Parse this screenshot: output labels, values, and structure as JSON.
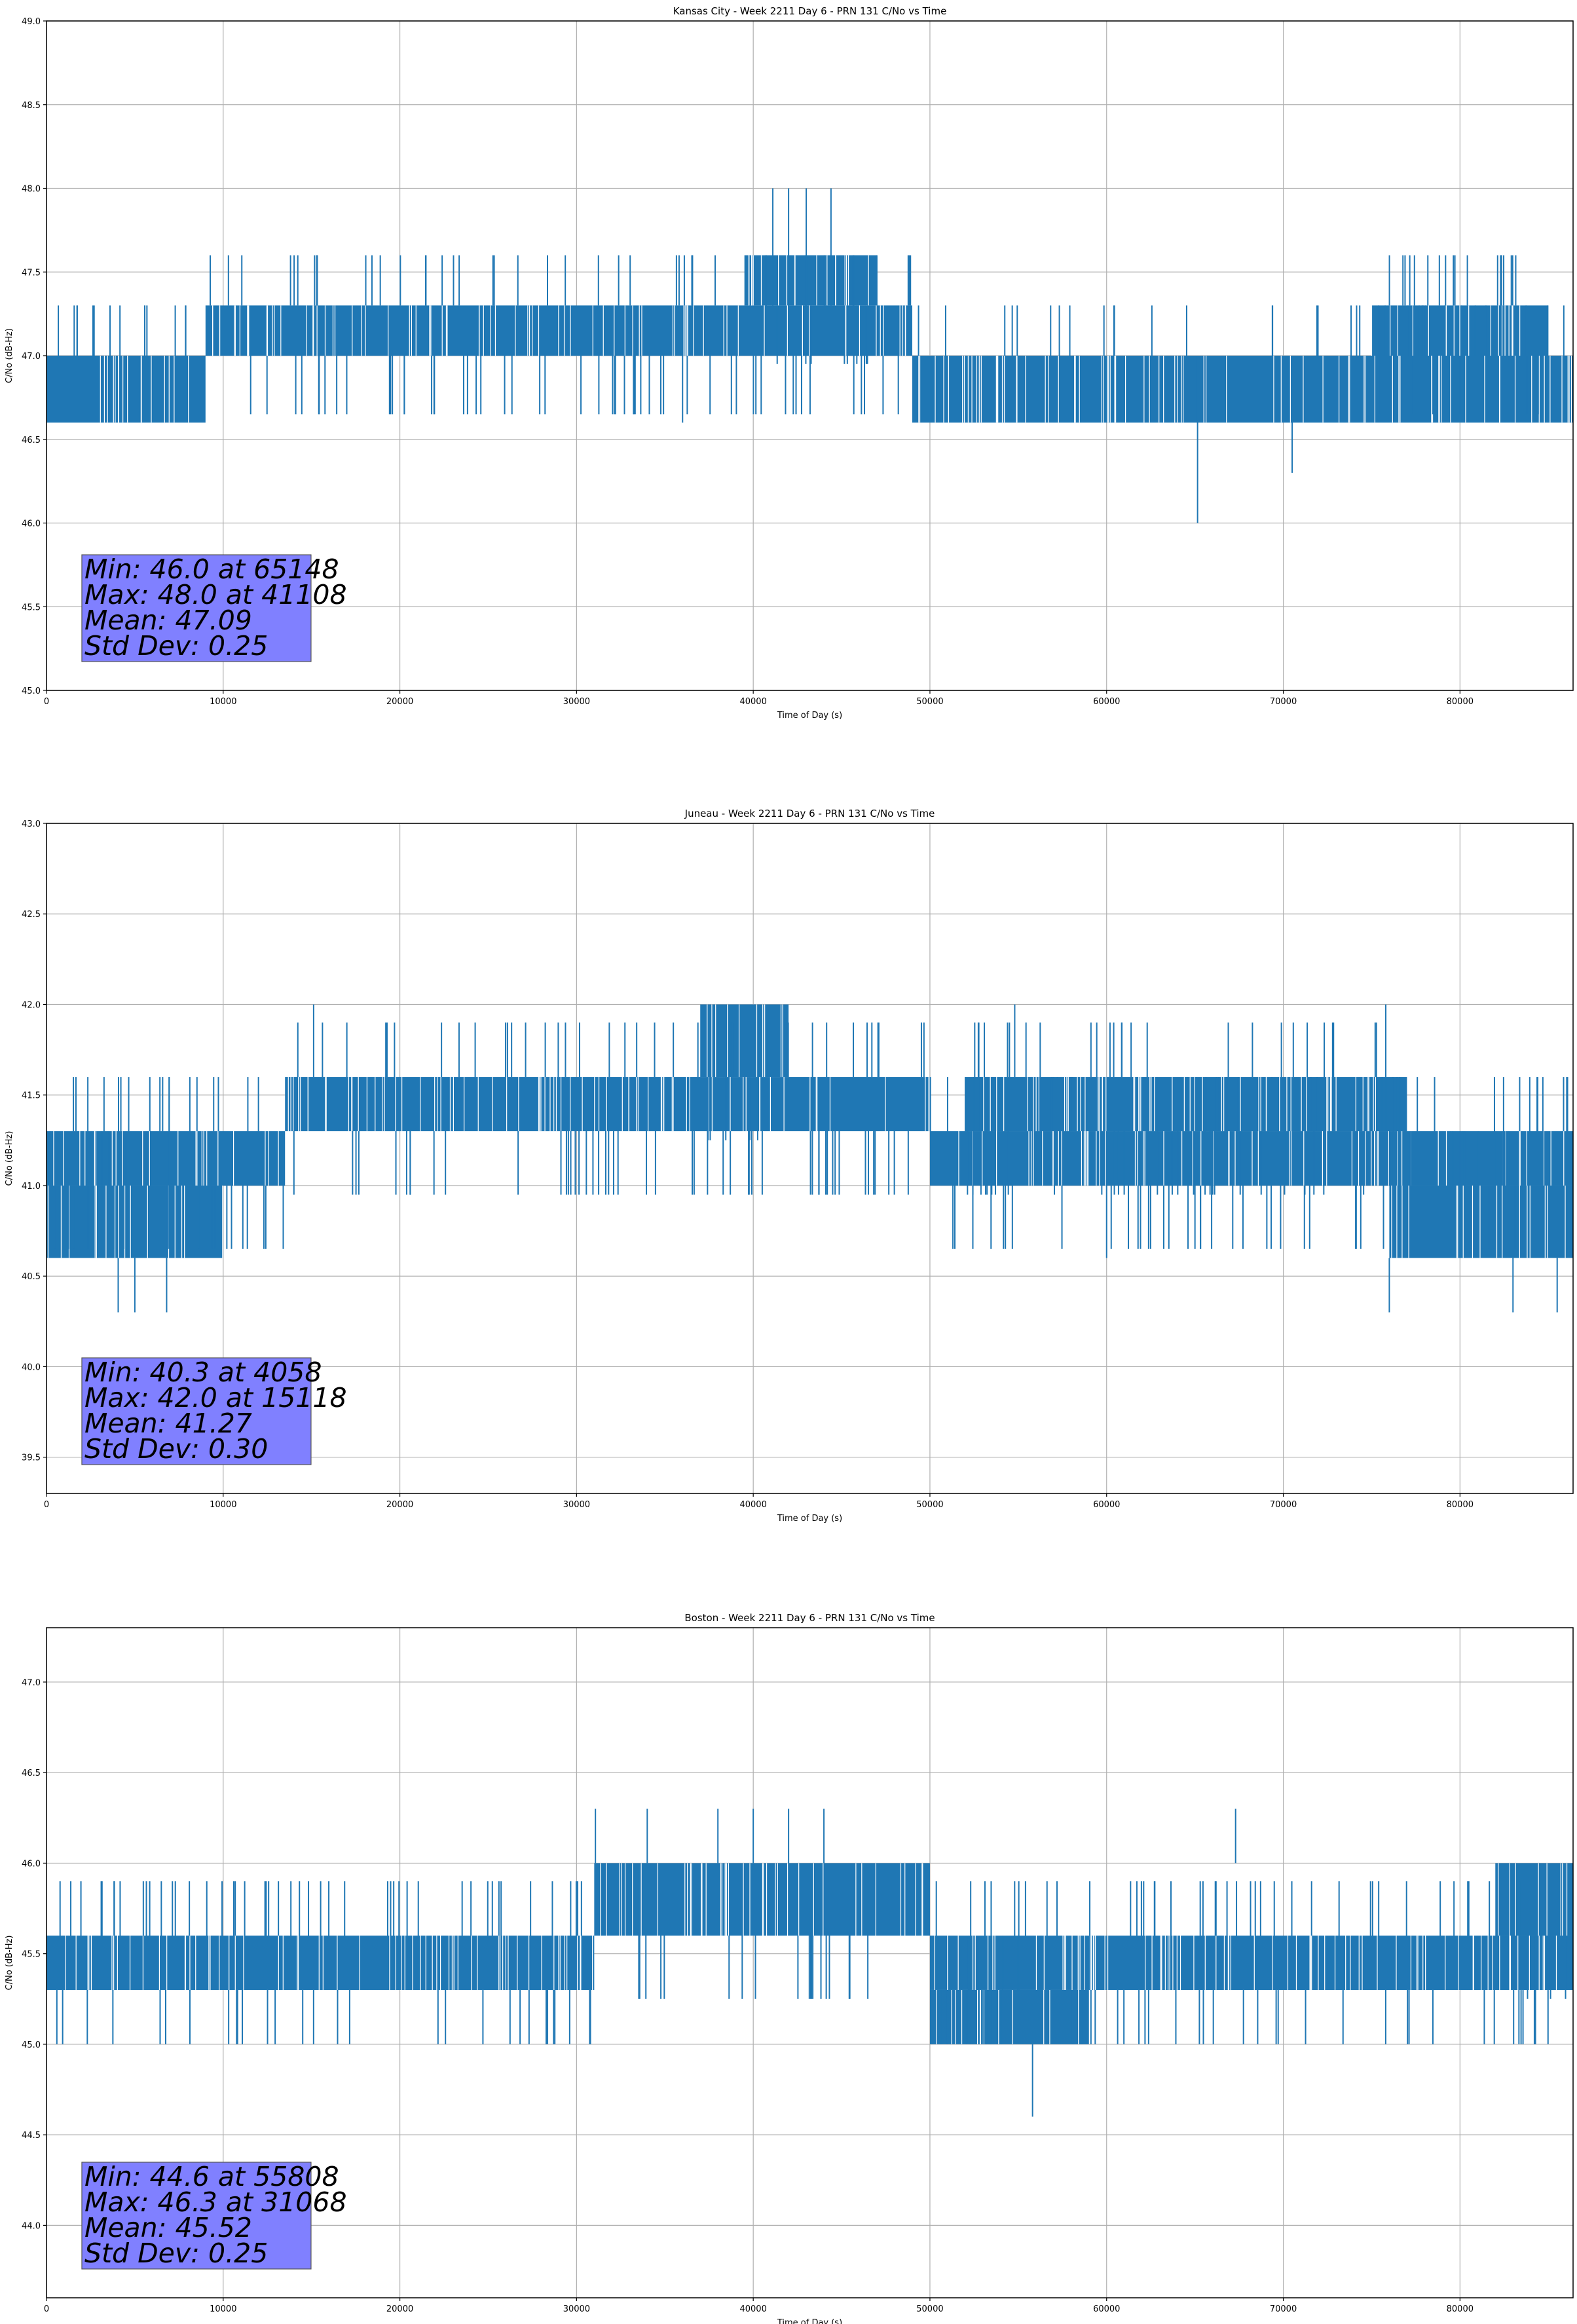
{
  "figure_colors": {
    "series": "#1f77b4",
    "grid": "#b0b0b0",
    "stats_box": "#8080ff",
    "axes": "#000000"
  },
  "chart_data": [
    {
      "type": "line",
      "title": "Kansas City - Week 2211 Day 6 - PRN 131 C/No vs Time",
      "xlabel": "Time of Day (s)",
      "ylabel": "C/No (dB-Hz)",
      "xlim": [
        0,
        86400
      ],
      "ylim": [
        45.0,
        49.0
      ],
      "xticks": [
        0,
        10000,
        20000,
        30000,
        40000,
        50000,
        60000,
        70000,
        80000
      ],
      "yticks": [
        45.0,
        45.5,
        46.0,
        46.5,
        47.0,
        47.5,
        48.0,
        48.5,
        49.0
      ],
      "grid": true,
      "series": [
        {
          "band_segments": [
            {
              "x": [
                0,
                9000
              ],
              "lo": 46.6,
              "hi": 47.0
            },
            {
              "x": [
                9000,
                49000
              ],
              "lo": 47.0,
              "hi": 47.3
            },
            {
              "x": [
                39500,
                47000
              ],
              "lo": 47.3,
              "hi": 47.6
            },
            {
              "x": [
                49000,
                86400
              ],
              "lo": 46.6,
              "hi": 47.0
            },
            {
              "x": [
                75000,
                85000
              ],
              "lo": 47.0,
              "hi": 47.3
            }
          ],
          "spike_range": [
            46.6,
            47.6
          ],
          "spikes": [
            [
              41108,
              47.3,
              48.0
            ],
            [
              42000,
              47.3,
              48.0
            ],
            [
              43000,
              47.3,
              48.0
            ],
            [
              44400,
              47.3,
              48.0
            ],
            [
              36000,
              46.6,
              47.0
            ],
            [
              65148,
              46.0,
              47.0
            ],
            [
              70500,
              46.3,
              47.0
            ]
          ]
        }
      ],
      "stats": {
        "lines": [
          "Min: 46.0 at 65148",
          "Max: 48.0 at 41108",
          "Mean: 47.09",
          "Std Dev: 0.25"
        ]
      }
    },
    {
      "type": "line",
      "title": "Juneau - Week 2211 Day 6 - PRN 131 C/No vs Time",
      "xlabel": "Time of Day (s)",
      "ylabel": "C/No (dB-Hz)",
      "xlim": [
        0,
        86400
      ],
      "ylim": [
        39.3,
        43.0
      ],
      "xticks": [
        0,
        10000,
        20000,
        30000,
        40000,
        50000,
        60000,
        70000,
        80000
      ],
      "yticks": [
        39.5,
        40.0,
        40.5,
        41.0,
        41.5,
        42.0,
        42.5,
        43.0
      ],
      "grid": true,
      "series": [
        {
          "band_segments": [
            {
              "x": [
                0,
                10000
              ],
              "lo": 40.6,
              "hi": 41.0
            },
            {
              "x": [
                0,
                13500
              ],
              "lo": 41.0,
              "hi": 41.3
            },
            {
              "x": [
                13500,
                50000
              ],
              "lo": 41.3,
              "hi": 41.6
            },
            {
              "x": [
                37000,
                42000
              ],
              "lo": 41.6,
              "hi": 42.0
            },
            {
              "x": [
                50000,
                86400
              ],
              "lo": 41.0,
              "hi": 41.3
            },
            {
              "x": [
                52000,
                77000
              ],
              "lo": 41.3,
              "hi": 41.6
            },
            {
              "x": [
                76000,
                86400
              ],
              "lo": 40.6,
              "hi": 41.0
            }
          ],
          "spike_range": [
            40.6,
            42.0
          ],
          "spikes": [
            [
              4058,
              40.3,
              40.6
            ],
            [
              5000,
              40.3,
              40.6
            ],
            [
              6800,
              40.3,
              40.6
            ],
            [
              76000,
              40.3,
              40.6
            ],
            [
              83000,
              40.3,
              40.6
            ],
            [
              85500,
              40.3,
              40.6
            ],
            [
              15118,
              41.6,
              42.0
            ],
            [
              54800,
              41.6,
              42.0
            ],
            [
              75800,
              41.6,
              42.0
            ],
            [
              60000,
              40.6,
              41.0
            ]
          ]
        }
      ],
      "stats": {
        "lines": [
          "Min: 40.3 at 4058",
          "Max: 42.0 at 15118",
          "Mean: 41.27",
          "Std Dev: 0.30"
        ]
      }
    },
    {
      "type": "line",
      "title": "Boston - Week 2211 Day 6 - PRN 131 C/No vs Time",
      "xlabel": "Time of Day (s)",
      "ylabel": "C/No (dB-Hz)",
      "xlim": [
        0,
        86400
      ],
      "ylim": [
        43.6,
        47.3
      ],
      "xticks": [
        0,
        10000,
        20000,
        30000,
        40000,
        50000,
        60000,
        70000,
        80000
      ],
      "yticks": [
        44.0,
        44.5,
        45.0,
        45.5,
        46.0,
        46.5,
        47.0
      ],
      "grid": true,
      "series": [
        {
          "band_segments": [
            {
              "x": [
                0,
                31000
              ],
              "lo": 45.3,
              "hi": 45.6
            },
            {
              "x": [
                31000,
                50000
              ],
              "lo": 45.6,
              "hi": 46.0
            },
            {
              "x": [
                50000,
                59000
              ],
              "lo": 45.0,
              "hi": 45.3
            },
            {
              "x": [
                50000,
                86400
              ],
              "lo": 45.3,
              "hi": 45.6
            },
            {
              "x": [
                82000,
                86400
              ],
              "lo": 45.6,
              "hi": 46.0
            }
          ],
          "spike_range": [
            45.0,
            46.0
          ],
          "spikes": [
            [
              31068,
              46.0,
              46.3
            ],
            [
              34000,
              46.0,
              46.3
            ],
            [
              38000,
              46.0,
              46.3
            ],
            [
              40000,
              46.0,
              46.3
            ],
            [
              42000,
              46.0,
              46.3
            ],
            [
              44000,
              46.0,
              46.3
            ],
            [
              67300,
              46.0,
              46.3
            ],
            [
              55808,
              44.6,
              45.0
            ]
          ]
        }
      ],
      "stats": {
        "lines": [
          "Min: 44.6 at 55808",
          "Max: 46.3 at 31068",
          "Mean: 45.52",
          "Std Dev: 0.25"
        ]
      }
    }
  ]
}
